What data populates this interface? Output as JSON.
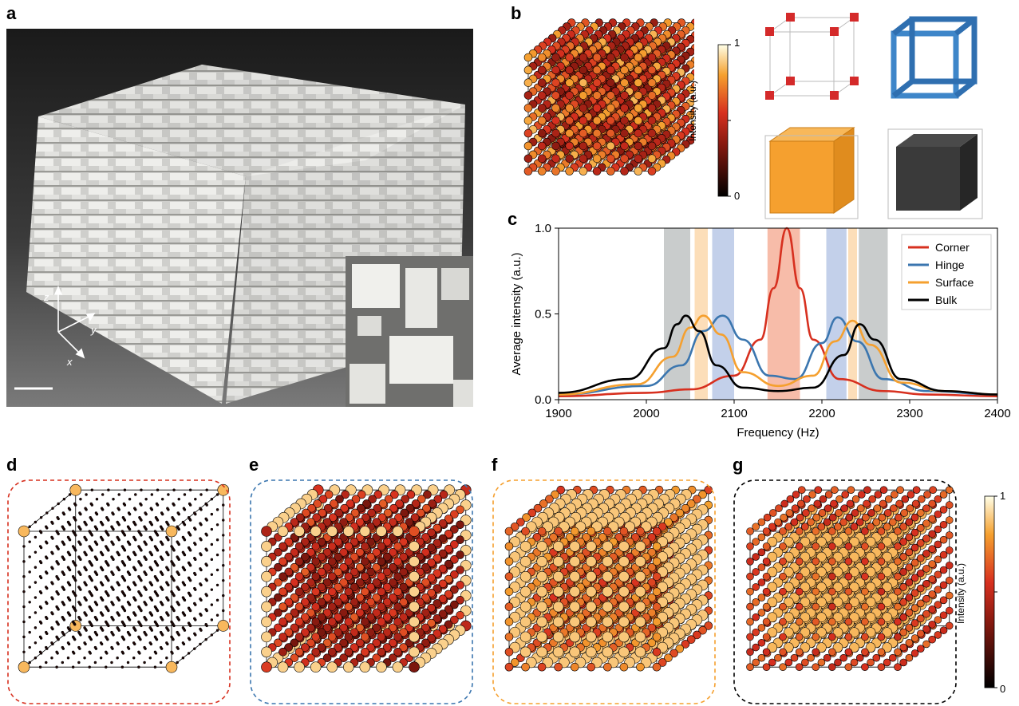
{
  "panels": {
    "a": "a",
    "b": "b",
    "c": "c",
    "d": "d",
    "e": "e",
    "f": "f",
    "g": "g"
  },
  "axes_labels": {
    "z": "z",
    "y": "y",
    "x": "x"
  },
  "colorbar": {
    "label": "Intensity (a.u.)",
    "max": "1",
    "min": "0"
  },
  "colors": {
    "corner": "#d7301f",
    "hinge": "#3b76af",
    "surface": "#f5a02f",
    "bulk": "#000000",
    "corner_band": "#f6b09a",
    "hinge_band": "#b9c8e6",
    "surface_band": "#fbd8ad",
    "bulk_band": "#bfc3c3"
  },
  "chart_data": {
    "type": "line",
    "xlabel": "Frequency (Hz)",
    "ylabel": "Average intensity (a.u.)",
    "xlim": [
      1900,
      2400
    ],
    "ylim": [
      0,
      1.0
    ],
    "xticks": [
      "1900",
      "2000",
      "2100",
      "2200",
      "2300",
      "2400"
    ],
    "yticks": [
      "0.0",
      "0.5",
      "1.0"
    ],
    "legend_position": "top-right",
    "series": [
      {
        "name": "Corner",
        "color": "#d7301f",
        "x": [
          1900,
          2000,
          2050,
          2100,
          2130,
          2145,
          2160,
          2175,
          2190,
          2220,
          2270,
          2320,
          2400
        ],
        "y": [
          0.02,
          0.04,
          0.06,
          0.14,
          0.35,
          0.65,
          1.0,
          0.65,
          0.35,
          0.12,
          0.05,
          0.03,
          0.02
        ]
      },
      {
        "name": "Hinge",
        "color": "#3b76af",
        "x": [
          1900,
          2000,
          2040,
          2065,
          2087,
          2110,
          2140,
          2170,
          2200,
          2218,
          2240,
          2270,
          2320,
          2400
        ],
        "y": [
          0.03,
          0.08,
          0.2,
          0.4,
          0.49,
          0.35,
          0.14,
          0.12,
          0.33,
          0.48,
          0.34,
          0.12,
          0.05,
          0.03
        ]
      },
      {
        "name": "Surface",
        "color": "#f5a02f",
        "x": [
          1900,
          1990,
          2030,
          2050,
          2065,
          2085,
          2110,
          2150,
          2190,
          2215,
          2235,
          2255,
          2290,
          2340,
          2400
        ],
        "y": [
          0.03,
          0.09,
          0.25,
          0.42,
          0.49,
          0.38,
          0.16,
          0.08,
          0.14,
          0.34,
          0.46,
          0.32,
          0.1,
          0.05,
          0.03
        ]
      },
      {
        "name": "Bulk",
        "color": "#000000",
        "x": [
          1900,
          1980,
          2020,
          2035,
          2045,
          2060,
          2080,
          2110,
          2150,
          2190,
          2225,
          2243,
          2260,
          2290,
          2340,
          2400
        ],
        "y": [
          0.04,
          0.12,
          0.3,
          0.44,
          0.49,
          0.4,
          0.2,
          0.07,
          0.05,
          0.07,
          0.26,
          0.44,
          0.35,
          0.12,
          0.05,
          0.03
        ]
      }
    ],
    "bands": [
      {
        "name": "bulk-low",
        "range": [
          2020,
          2050
        ],
        "color": "#bfc3c3"
      },
      {
        "name": "surface-low",
        "range": [
          2055,
          2070
        ],
        "color": "#fbd8ad"
      },
      {
        "name": "hinge-low",
        "range": [
          2075,
          2100
        ],
        "color": "#b9c8e6"
      },
      {
        "name": "corner",
        "range": [
          2138,
          2175
        ],
        "color": "#f6b09a"
      },
      {
        "name": "hinge-high",
        "range": [
          2205,
          2228
        ],
        "color": "#b9c8e6"
      },
      {
        "name": "surface-high",
        "range": [
          2230,
          2240
        ],
        "color": "#fbd8ad"
      },
      {
        "name": "bulk-high",
        "range": [
          2242,
          2275
        ],
        "color": "#bfc3c3"
      }
    ]
  }
}
